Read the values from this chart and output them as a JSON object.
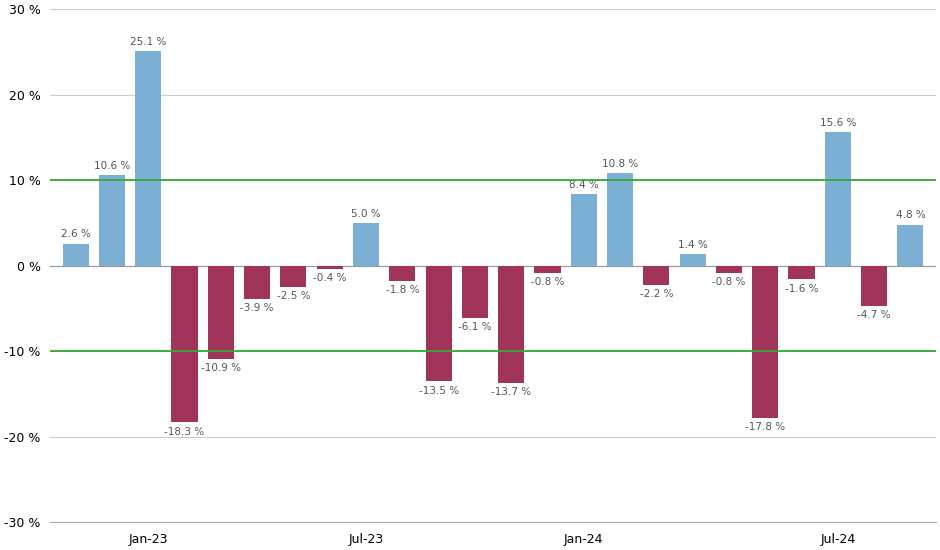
{
  "bars": [
    {
      "val": 2.6,
      "color": "blue"
    },
    {
      "val": 10.6,
      "color": "blue"
    },
    {
      "val": 25.1,
      "color": "blue"
    },
    {
      "val": -18.3,
      "color": "red"
    },
    {
      "val": -10.9,
      "color": "red"
    },
    {
      "val": -3.9,
      "color": "red"
    },
    {
      "val": -2.5,
      "color": "red"
    },
    {
      "val": -0.4,
      "color": "red"
    },
    {
      "val": 5.0,
      "color": "blue"
    },
    {
      "val": -1.8,
      "color": "red"
    },
    {
      "val": -13.5,
      "color": "red"
    },
    {
      "val": -6.1,
      "color": "red"
    },
    {
      "val": -13.7,
      "color": "red"
    },
    {
      "val": -0.8,
      "color": "red"
    },
    {
      "val": 8.4,
      "color": "blue"
    },
    {
      "val": 10.8,
      "color": "blue"
    },
    {
      "val": -2.2,
      "color": "red"
    },
    {
      "val": 1.4,
      "color": "blue"
    },
    {
      "val": -0.8,
      "color": "red"
    },
    {
      "val": -17.8,
      "color": "red"
    },
    {
      "val": -1.6,
      "color": "red"
    },
    {
      "val": 15.6,
      "color": "blue"
    },
    {
      "val": -4.7,
      "color": "red"
    },
    {
      "val": 4.8,
      "color": "blue"
    }
  ],
  "xtick_positions": [
    2,
    8,
    14,
    21
  ],
  "xtick_labels": [
    "Jan-23",
    "Jul-23",
    "Jan-24",
    "Jul-24"
  ],
  "blue_color": "#7BAFD4",
  "red_color": "#A0345A",
  "ylim": [
    -30,
    30
  ],
  "yticks": [
    -30,
    -20,
    -10,
    0,
    10,
    20,
    30
  ],
  "hline_values": [
    10,
    -10
  ],
  "hline_color": "#33AA33",
  "grid_color": "#CCCCCC",
  "grid_yticks": [
    -20,
    -10,
    0,
    10,
    20
  ],
  "background_color": "#FFFFFF",
  "label_fontsize": 7.5,
  "label_color": "#555555"
}
